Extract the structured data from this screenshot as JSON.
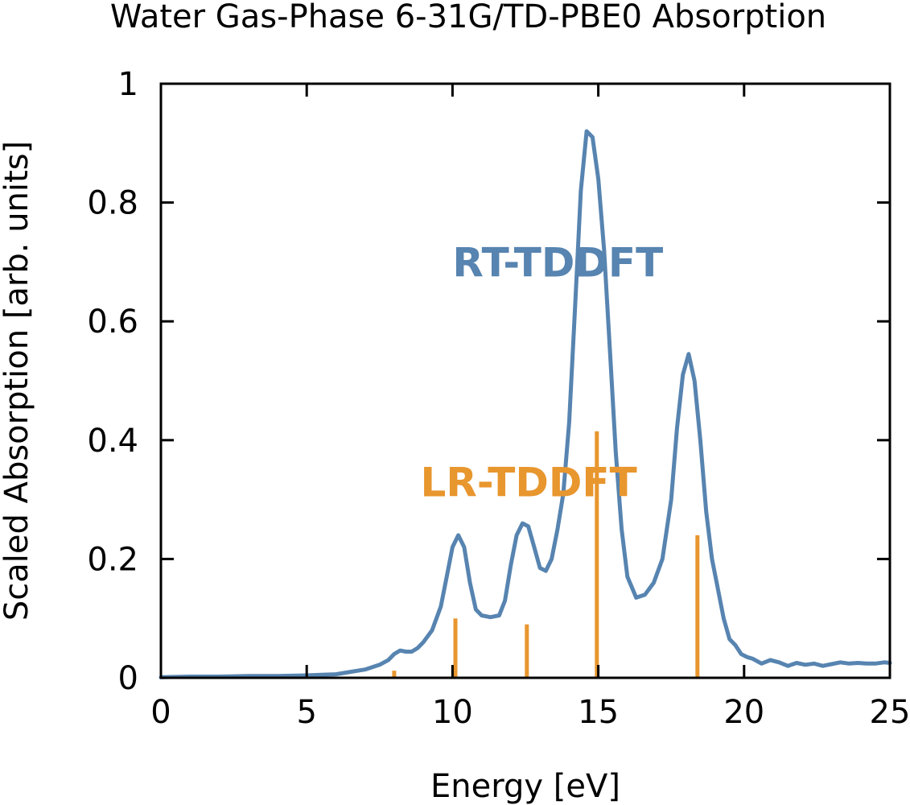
{
  "chart_data": {
    "type": "line",
    "title": "Water Gas-Phase 6-31G/TD-PBE0 Absorption",
    "xlabel": "Energy [eV]",
    "ylabel": "Scaled Absorption [arb. units]",
    "xlim": [
      0,
      25
    ],
    "ylim": [
      0,
      1
    ],
    "x_ticks": [
      0,
      5,
      10,
      15,
      20,
      25
    ],
    "x_tick_labels": [
      "0",
      "5",
      "10",
      "15",
      "20",
      "25"
    ],
    "y_ticks": [
      0,
      0.2,
      0.4,
      0.6,
      0.8,
      1
    ],
    "y_tick_labels": [
      "0",
      "0.2",
      "0.4",
      "0.6",
      "0.8",
      "1"
    ],
    "grid": false,
    "legend": "none",
    "annotations": [
      {
        "text": "RT-TDDFT",
        "color": "#5784b0",
        "x": 10.0,
        "y": 0.7
      },
      {
        "text": "LR-TDDFT",
        "color": "#e8962e",
        "x": 8.9,
        "y": 0.33
      }
    ],
    "series": [
      {
        "label": "RT-TDDFT",
        "kind": "line",
        "color": "#5784b0",
        "x": [
          0,
          1,
          2,
          3,
          4,
          5,
          5.5,
          6,
          6.5,
          7,
          7.5,
          7.8,
          8.0,
          8.2,
          8.4,
          8.6,
          8.8,
          9.0,
          9.3,
          9.6,
          9.8,
          10.0,
          10.2,
          10.4,
          10.6,
          10.8,
          11.0,
          11.3,
          11.6,
          11.8,
          12.0,
          12.2,
          12.4,
          12.6,
          12.8,
          13.0,
          13.2,
          13.4,
          13.6,
          13.8,
          14.0,
          14.2,
          14.4,
          14.6,
          14.8,
          15.0,
          15.2,
          15.4,
          15.6,
          15.8,
          16.0,
          16.3,
          16.6,
          16.9,
          17.2,
          17.5,
          17.7,
          17.9,
          18.1,
          18.3,
          18.5,
          18.7,
          18.9,
          19.1,
          19.3,
          19.5,
          19.7,
          19.9,
          20.1,
          20.3,
          20.6,
          20.9,
          21.2,
          21.5,
          21.8,
          22.1,
          22.4,
          22.7,
          23.0,
          23.3,
          23.6,
          23.9,
          24.2,
          24.5,
          24.8,
          25.0
        ],
        "y": [
          0.001,
          0.002,
          0.002,
          0.003,
          0.003,
          0.004,
          0.005,
          0.006,
          0.01,
          0.014,
          0.022,
          0.03,
          0.04,
          0.046,
          0.044,
          0.044,
          0.05,
          0.06,
          0.08,
          0.12,
          0.17,
          0.22,
          0.24,
          0.22,
          0.16,
          0.115,
          0.105,
          0.102,
          0.105,
          0.13,
          0.19,
          0.24,
          0.26,
          0.255,
          0.22,
          0.185,
          0.18,
          0.2,
          0.25,
          0.31,
          0.43,
          0.62,
          0.82,
          0.92,
          0.91,
          0.84,
          0.72,
          0.55,
          0.38,
          0.25,
          0.17,
          0.135,
          0.14,
          0.16,
          0.2,
          0.3,
          0.42,
          0.51,
          0.545,
          0.5,
          0.4,
          0.28,
          0.2,
          0.15,
          0.1,
          0.065,
          0.055,
          0.04,
          0.035,
          0.032,
          0.024,
          0.03,
          0.026,
          0.02,
          0.025,
          0.022,
          0.024,
          0.02,
          0.023,
          0.026,
          0.024,
          0.025,
          0.024,
          0.024,
          0.026,
          0.025
        ]
      },
      {
        "label": "LR-TDDFT",
        "kind": "stick",
        "color": "#e8962e",
        "x": [
          8.0,
          10.1,
          12.55,
          14.95,
          18.4
        ],
        "y": [
          0.012,
          0.1,
          0.09,
          0.415,
          0.24
        ]
      }
    ]
  }
}
